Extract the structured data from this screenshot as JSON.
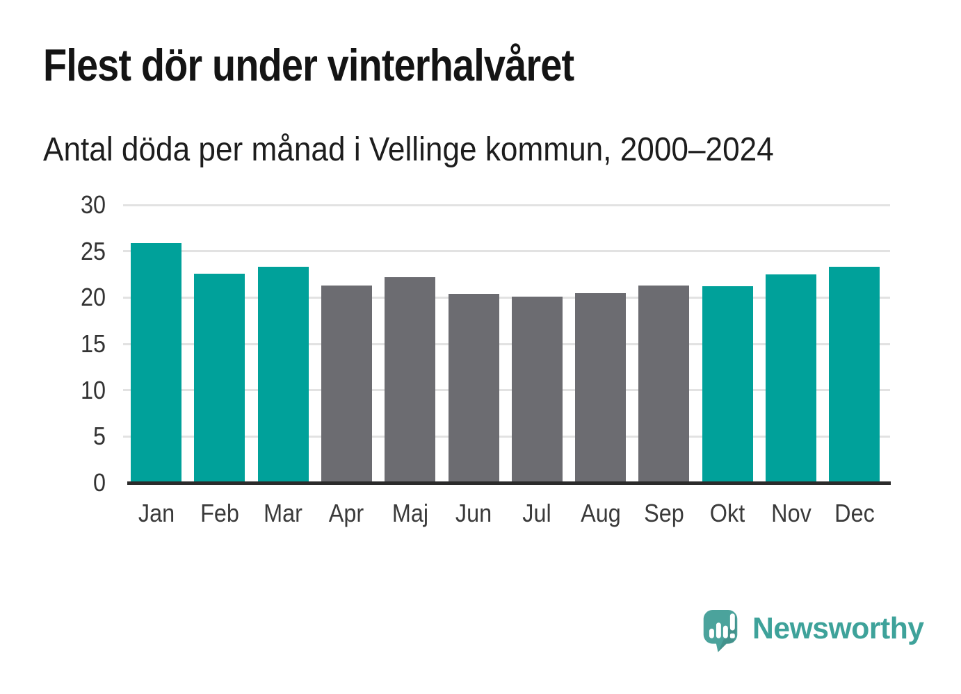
{
  "header": {
    "title": "Flest dör under vinterhalvåret",
    "subtitle": "Antal döda per månad i Vellinge kommun, 2000–2024"
  },
  "chart_data": {
    "type": "bar",
    "title": "Flest dör under vinterhalvåret",
    "subtitle": "Antal döda per månad i Vellinge kommun, 2000–2024",
    "categories": [
      "Jan",
      "Feb",
      "Mar",
      "Apr",
      "Maj",
      "Jun",
      "Jul",
      "Aug",
      "Sep",
      "Okt",
      "Nov",
      "Dec"
    ],
    "values": [
      25.9,
      22.6,
      23.3,
      21.3,
      22.2,
      20.4,
      20.1,
      20.5,
      21.3,
      21.2,
      22.5,
      23.3
    ],
    "bar_colors": [
      "teal",
      "teal",
      "teal",
      "gray",
      "gray",
      "gray",
      "gray",
      "gray",
      "gray",
      "teal",
      "teal",
      "teal"
    ],
    "colors": {
      "teal": "#00a19a",
      "gray": "#6c6c71",
      "gridline": "#e2e2e2",
      "axis_line": "#2b2b2b",
      "tick_text": "#333333"
    },
    "xlabel": "",
    "ylabel": "",
    "yticks": [
      0,
      5,
      10,
      15,
      20,
      25,
      30
    ],
    "ylim": [
      0,
      30
    ],
    "grid": true,
    "legend": "none"
  },
  "branding": {
    "name": "Newsworthy",
    "icon": "speech-bubble-bar-chart-icon",
    "icon_color": "#4ba39c",
    "text_color": "#3ea29a"
  }
}
